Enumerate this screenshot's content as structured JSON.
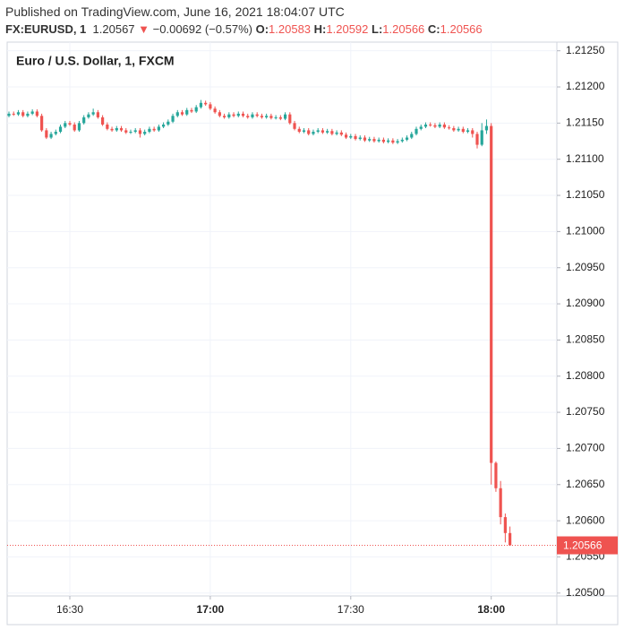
{
  "header": {
    "published": "Published on TradingView.com, June 16, 2021 18:04:07 UTC",
    "symbol": "FX:EURUSD, 1",
    "price": "1.20567",
    "arrow": "▼",
    "change": "−0.00692 (−0.57%)",
    "ohlc": [
      {
        "key": "O:",
        "value": "1.20583"
      },
      {
        "key": "H:",
        "value": "1.20592"
      },
      {
        "key": "L:",
        "value": "1.20566"
      },
      {
        "key": "C:",
        "value": "1.20566"
      }
    ]
  },
  "chart_data": {
    "type": "candlestick",
    "title": "Euro / U.S. Dollar, 1, FXCM",
    "up_color": "#26a69a",
    "down_color": "#ef5350",
    "grid": true,
    "ylim": [
      1.20496,
      1.21262
    ],
    "yticks": [
      {
        "value": 1.2125,
        "label": "1.21250"
      },
      {
        "value": 1.212,
        "label": "1.21200"
      },
      {
        "value": 1.2115,
        "label": "1.21150"
      },
      {
        "value": 1.211,
        "label": "1.21100"
      },
      {
        "value": 1.2105,
        "label": "1.21050"
      },
      {
        "value": 1.21,
        "label": "1.21000"
      },
      {
        "value": 1.2095,
        "label": "1.20950"
      },
      {
        "value": 1.209,
        "label": "1.20900"
      },
      {
        "value": 1.2085,
        "label": "1.20850"
      },
      {
        "value": 1.208,
        "label": "1.20800"
      },
      {
        "value": 1.2075,
        "label": "1.20750"
      },
      {
        "value": 1.207,
        "label": "1.20700"
      },
      {
        "value": 1.2065,
        "label": "1.20650"
      },
      {
        "value": 1.206,
        "label": "1.20600"
      },
      {
        "value": 1.2055,
        "label": "1.20550"
      },
      {
        "value": 1.205,
        "label": "1.20500"
      }
    ],
    "xticks": [
      "16:30",
      "17:00",
      "17:30",
      "18:00"
    ],
    "last_price": 1.20566,
    "x": [
      "16:17",
      "16:18",
      "16:19",
      "16:20",
      "16:21",
      "16:22",
      "16:23",
      "16:24",
      "16:25",
      "16:26",
      "16:27",
      "16:28",
      "16:29",
      "16:30",
      "16:31",
      "16:32",
      "16:33",
      "16:34",
      "16:35",
      "16:36",
      "16:37",
      "16:38",
      "16:39",
      "16:40",
      "16:41",
      "16:42",
      "16:43",
      "16:44",
      "16:45",
      "16:46",
      "16:47",
      "16:48",
      "16:49",
      "16:50",
      "16:51",
      "16:52",
      "16:53",
      "16:54",
      "16:55",
      "16:56",
      "16:57",
      "16:58",
      "16:59",
      "17:00",
      "17:01",
      "17:02",
      "17:03",
      "17:04",
      "17:05",
      "17:06",
      "17:07",
      "17:08",
      "17:09",
      "17:10",
      "17:11",
      "17:12",
      "17:13",
      "17:14",
      "17:15",
      "17:16",
      "17:17",
      "17:18",
      "17:19",
      "17:20",
      "17:21",
      "17:22",
      "17:23",
      "17:24",
      "17:25",
      "17:26",
      "17:27",
      "17:28",
      "17:29",
      "17:30",
      "17:31",
      "17:32",
      "17:33",
      "17:34",
      "17:35",
      "17:36",
      "17:37",
      "17:38",
      "17:39",
      "17:40",
      "17:41",
      "17:42",
      "17:43",
      "17:44",
      "17:45",
      "17:46",
      "17:47",
      "17:48",
      "17:49",
      "17:50",
      "17:51",
      "17:52",
      "17:53",
      "17:54",
      "17:55",
      "17:56",
      "17:57",
      "17:58",
      "17:59",
      "18:00",
      "18:01",
      "18:02",
      "18:03",
      "18:04"
    ],
    "ohlc": [
      [
        1.2116,
        1.21166,
        1.21158,
        1.21163
      ],
      [
        1.21163,
        1.21166,
        1.2116,
        1.21162
      ],
      [
        1.21162,
        1.21168,
        1.2116,
        1.21165
      ],
      [
        1.21165,
        1.21168,
        1.21158,
        1.2116
      ],
      [
        1.2116,
        1.21166,
        1.21158,
        1.21163
      ],
      [
        1.21163,
        1.21169,
        1.21161,
        1.21166
      ],
      [
        1.21166,
        1.21169,
        1.21158,
        1.2116
      ],
      [
        1.2116,
        1.21163,
        1.21138,
        1.2114
      ],
      [
        1.2114,
        1.21143,
        1.21128,
        1.2113
      ],
      [
        1.2113,
        1.21138,
        1.21128,
        1.21135
      ],
      [
        1.21135,
        1.21141,
        1.21133,
        1.21138
      ],
      [
        1.21138,
        1.21148,
        1.21136,
        1.21145
      ],
      [
        1.21145,
        1.21153,
        1.21143,
        1.2115
      ],
      [
        1.2115,
        1.21153,
        1.21146,
        1.21148
      ],
      [
        1.21148,
        1.21151,
        1.21138,
        1.2114
      ],
      [
        1.2114,
        1.21153,
        1.21138,
        1.2115
      ],
      [
        1.2115,
        1.21161,
        1.21148,
        1.21158
      ],
      [
        1.21158,
        1.21165,
        1.21156,
        1.21162
      ],
      [
        1.21162,
        1.2117,
        1.2116,
        1.21165
      ],
      [
        1.21165,
        1.21168,
        1.21156,
        1.21158
      ],
      [
        1.21158,
        1.21161,
        1.21146,
        1.21148
      ],
      [
        1.21148,
        1.21151,
        1.2114,
        1.21142
      ],
      [
        1.21142,
        1.21145,
        1.21138,
        1.2114
      ],
      [
        1.2114,
        1.21146,
        1.21138,
        1.21143
      ],
      [
        1.21143,
        1.21146,
        1.21138,
        1.2114
      ],
      [
        1.2114,
        1.21143,
        1.21135,
        1.21137
      ],
      [
        1.21137,
        1.21141,
        1.21135,
        1.21138
      ],
      [
        1.21138,
        1.21143,
        1.21136,
        1.2114
      ],
      [
        1.2114,
        1.21143,
        1.2113,
        1.21135
      ],
      [
        1.21135,
        1.21141,
        1.21133,
        1.21138
      ],
      [
        1.21138,
        1.21145,
        1.21136,
        1.21142
      ],
      [
        1.21142,
        1.21145,
        1.21138,
        1.2114
      ],
      [
        1.2114,
        1.21148,
        1.21138,
        1.21145
      ],
      [
        1.21145,
        1.21151,
        1.21143,
        1.21148
      ],
      [
        1.21148,
        1.21155,
        1.21146,
        1.21152
      ],
      [
        1.21152,
        1.21163,
        1.2115,
        1.2116
      ],
      [
        1.2116,
        1.21168,
        1.21158,
        1.21165
      ],
      [
        1.21165,
        1.21168,
        1.2116,
        1.21162
      ],
      [
        1.21162,
        1.21171,
        1.2116,
        1.21168
      ],
      [
        1.21168,
        1.21171,
        1.21164,
        1.21166
      ],
      [
        1.21166,
        1.21175,
        1.21164,
        1.21172
      ],
      [
        1.21172,
        1.21182,
        1.2117,
        1.21178
      ],
      [
        1.21178,
        1.21181,
        1.21174,
        1.21176
      ],
      [
        1.21176,
        1.21179,
        1.21168,
        1.2117
      ],
      [
        1.2117,
        1.21173,
        1.21163,
        1.21165
      ],
      [
        1.21165,
        1.21168,
        1.21158,
        1.2116
      ],
      [
        1.2116,
        1.21163,
        1.21156,
        1.21158
      ],
      [
        1.21158,
        1.21165,
        1.21156,
        1.21162
      ],
      [
        1.21162,
        1.21165,
        1.21158,
        1.2116
      ],
      [
        1.2116,
        1.21166,
        1.21158,
        1.21163
      ],
      [
        1.21163,
        1.21166,
        1.21158,
        1.2116
      ],
      [
        1.2116,
        1.21163,
        1.21156,
        1.21158
      ],
      [
        1.21158,
        1.21165,
        1.21156,
        1.21162
      ],
      [
        1.21162,
        1.21165,
        1.21158,
        1.2116
      ],
      [
        1.2116,
        1.21163,
        1.21156,
        1.21158
      ],
      [
        1.21158,
        1.21163,
        1.21156,
        1.2116
      ],
      [
        1.2116,
        1.21163,
        1.21155,
        1.21157
      ],
      [
        1.21157,
        1.21161,
        1.21155,
        1.21158
      ],
      [
        1.21158,
        1.21161,
        1.21154,
        1.21156
      ],
      [
        1.21156,
        1.21165,
        1.21154,
        1.21162
      ],
      [
        1.21162,
        1.21165,
        1.21148,
        1.2115
      ],
      [
        1.2115,
        1.21153,
        1.2114,
        1.21142
      ],
      [
        1.21142,
        1.21145,
        1.21136,
        1.21138
      ],
      [
        1.21138,
        1.21143,
        1.21136,
        1.2114
      ],
      [
        1.2114,
        1.21143,
        1.21133,
        1.21135
      ],
      [
        1.21135,
        1.21141,
        1.21133,
        1.21138
      ],
      [
        1.21138,
        1.21143,
        1.21136,
        1.2114
      ],
      [
        1.2114,
        1.21143,
        1.21135,
        1.21137
      ],
      [
        1.21137,
        1.21142,
        1.21135,
        1.21139
      ],
      [
        1.21139,
        1.21142,
        1.21133,
        1.21135
      ],
      [
        1.21135,
        1.2114,
        1.21133,
        1.21137
      ],
      [
        1.21137,
        1.2114,
        1.21132,
        1.21134
      ],
      [
        1.21134,
        1.21137,
        1.21128,
        1.2113
      ],
      [
        1.2113,
        1.21135,
        1.21128,
        1.21132
      ],
      [
        1.21132,
        1.21135,
        1.21126,
        1.21128
      ],
      [
        1.21128,
        1.21133,
        1.21126,
        1.2113
      ],
      [
        1.2113,
        1.21133,
        1.21124,
        1.21126
      ],
      [
        1.21126,
        1.21131,
        1.21124,
        1.21128
      ],
      [
        1.21128,
        1.21131,
        1.21123,
        1.21125
      ],
      [
        1.21125,
        1.2113,
        1.21123,
        1.21127
      ],
      [
        1.21127,
        1.2113,
        1.21122,
        1.21124
      ],
      [
        1.21124,
        1.21129,
        1.21122,
        1.21126
      ],
      [
        1.21126,
        1.21129,
        1.21121,
        1.21123
      ],
      [
        1.21123,
        1.21128,
        1.21121,
        1.21125
      ],
      [
        1.21125,
        1.2113,
        1.21123,
        1.21127
      ],
      [
        1.21127,
        1.21133,
        1.21125,
        1.2113
      ],
      [
        1.2113,
        1.21138,
        1.21128,
        1.21135
      ],
      [
        1.21135,
        1.21145,
        1.21133,
        1.21142
      ],
      [
        1.21142,
        1.21148,
        1.2114,
        1.21145
      ],
      [
        1.21145,
        1.21151,
        1.21143,
        1.21148
      ],
      [
        1.21148,
        1.21151,
        1.21145,
        1.21147
      ],
      [
        1.21147,
        1.2115,
        1.21143,
        1.21145
      ],
      [
        1.21145,
        1.21151,
        1.21143,
        1.21148
      ],
      [
        1.21148,
        1.21151,
        1.21142,
        1.21144
      ],
      [
        1.21144,
        1.21147,
        1.21141,
        1.21143
      ],
      [
        1.21143,
        1.21146,
        1.21138,
        1.2114
      ],
      [
        1.2114,
        1.21145,
        1.21138,
        1.21142
      ],
      [
        1.21142,
        1.21145,
        1.21136,
        1.21138
      ],
      [
        1.21138,
        1.21143,
        1.21136,
        1.2114
      ],
      [
        1.2114,
        1.21143,
        1.2113,
        1.21135
      ],
      [
        1.21135,
        1.21138,
        1.21115,
        1.2112
      ],
      [
        1.2112,
        1.2115,
        1.21118,
        1.2114
      ],
      [
        1.2114,
        1.21155,
        1.21135,
        1.21146
      ],
      [
        1.21146,
        1.2115,
        1.2065,
        1.2068
      ],
      [
        1.2068,
        1.20682,
        1.2064,
        1.20645
      ],
      [
        1.20645,
        1.20655,
        1.20595,
        1.20605
      ],
      [
        1.20605,
        1.2061,
        1.2057,
        1.20583
      ],
      [
        1.20583,
        1.20592,
        1.20566,
        1.20566
      ]
    ]
  }
}
